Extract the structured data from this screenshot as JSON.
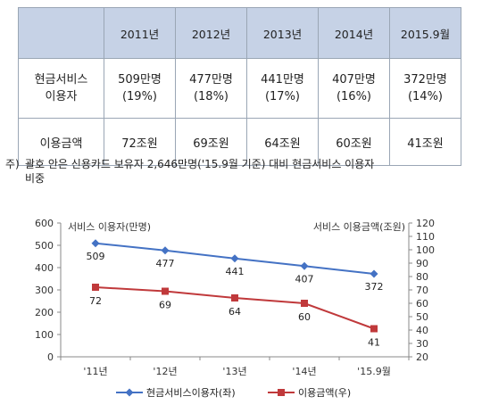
{
  "table": {
    "header": [
      "",
      "2011년",
      "2012년",
      "2013년",
      "2014년",
      "2015.9월"
    ],
    "rows": [
      {
        "label": [
          "현금서비스",
          "이용자"
        ],
        "cells": [
          [
            "509만명",
            "(19%)"
          ],
          [
            "477만명",
            "(18%)"
          ],
          [
            "441만명",
            "(17%)"
          ],
          [
            "407만명",
            "(16%)"
          ],
          [
            "372만명",
            "(14%)"
          ]
        ]
      },
      {
        "label": [
          "이용금액"
        ],
        "cells": [
          [
            "72조원"
          ],
          [
            "69조원"
          ],
          [
            "64조원"
          ],
          [
            "60조원"
          ],
          [
            "41조원"
          ]
        ]
      }
    ]
  },
  "note": {
    "prefix": "주)",
    "line1": "괄호 안은 신용카드 보유자 2,646만명('15.9월 기준) 대비 현금서비스 이용자",
    "line2": "비중"
  },
  "chart_data": {
    "type": "line",
    "categories": [
      "'11년",
      "'12년",
      "'13년",
      "'14년",
      "'15.9월"
    ],
    "series": [
      {
        "name": "현금서비스이용자(좌)",
        "axis": "left",
        "values": [
          509,
          477,
          441,
          407,
          372
        ],
        "color": "#4472c4",
        "marker": "diamond"
      },
      {
        "name": "이용금액(우)",
        "axis": "right",
        "values": [
          72,
          69,
          64,
          60,
          41
        ],
        "color": "#c0393b",
        "marker": "square"
      }
    ],
    "ylabel": "서비스 이용자(만명)",
    "y2label": "서비스 이용금액(조원)",
    "ylim": [
      0,
      600
    ],
    "yticks": [
      0,
      100,
      200,
      300,
      400,
      500,
      600
    ],
    "y2lim": [
      20,
      120
    ],
    "y2ticks": [
      20,
      30,
      40,
      50,
      60,
      70,
      80,
      90,
      100,
      110,
      120
    ],
    "legend": "bottom",
    "grid": false
  }
}
